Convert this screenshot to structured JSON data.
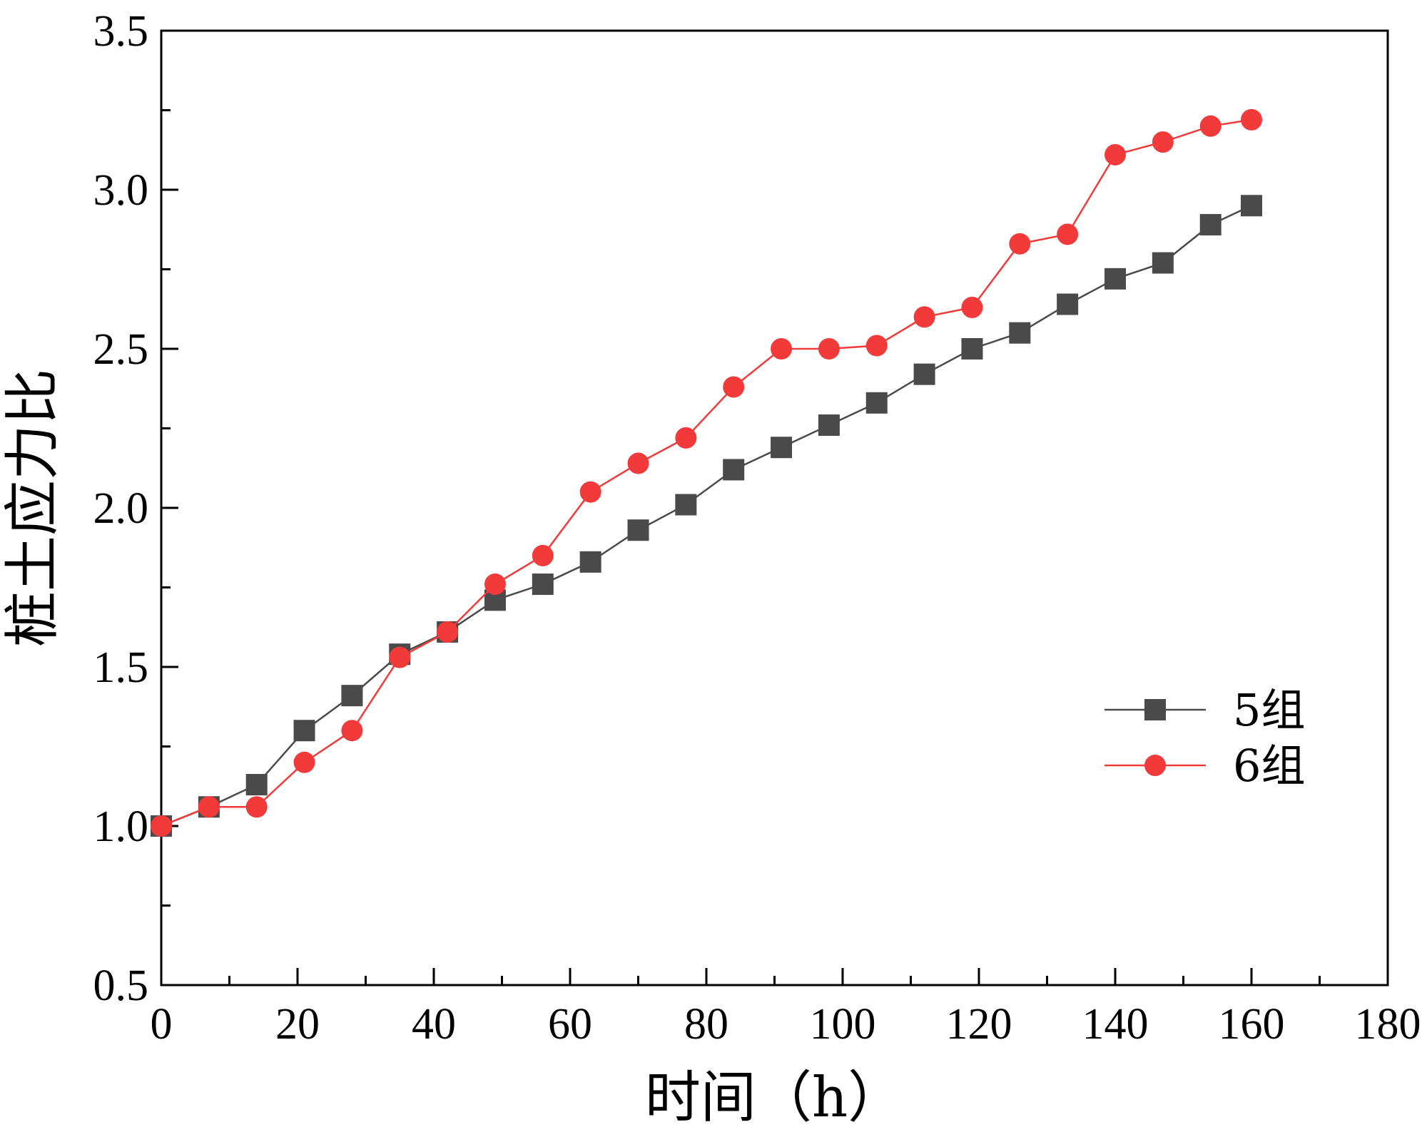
{
  "chart_data": {
    "type": "line",
    "title": "",
    "xlabel": "时间（h）",
    "ylabel": "桩土应力比",
    "xlim": [
      0,
      180
    ],
    "ylim": [
      0.5,
      3.5
    ],
    "x_ticks": [
      0,
      20,
      40,
      60,
      80,
      100,
      120,
      140,
      160,
      180
    ],
    "x_tick_labels": [
      "0",
      "20",
      "40",
      "60",
      "80",
      "100",
      "120",
      "140",
      "160",
      "180"
    ],
    "y_ticks": [
      0.5,
      1.0,
      1.5,
      2.0,
      2.5,
      3.0,
      3.5
    ],
    "y_tick_labels": [
      "0.5",
      "1.0",
      "1.5",
      "2.0",
      "2.5",
      "3.0",
      "3.5"
    ],
    "x_minor_ticks": [
      10,
      30,
      50,
      70,
      90,
      110,
      130,
      150,
      170
    ],
    "y_minor_ticks": [
      0.75,
      1.25,
      1.75,
      2.25,
      2.75,
      3.25
    ],
    "grid": false,
    "legend_position": "center-right",
    "x": [
      0,
      7,
      14,
      21,
      28,
      35,
      42,
      49,
      56,
      63,
      70,
      77,
      84,
      91,
      98,
      105,
      112,
      119,
      126,
      133,
      140,
      147,
      154,
      160
    ],
    "series": [
      {
        "name": "5组",
        "color": "#4a4a4a",
        "marker": "square",
        "values": [
          1.0,
          1.06,
          1.13,
          1.3,
          1.41,
          1.54,
          1.61,
          1.71,
          1.76,
          1.83,
          1.93,
          2.01,
          2.12,
          2.19,
          2.26,
          2.33,
          2.42,
          2.5,
          2.55,
          2.64,
          2.72,
          2.77,
          2.89,
          2.95
        ]
      },
      {
        "name": "6组",
        "color": "#f23a3a",
        "marker": "circle",
        "values": [
          1.0,
          1.06,
          1.06,
          1.2,
          1.3,
          1.53,
          1.61,
          1.76,
          1.85,
          2.05,
          2.14,
          2.22,
          2.38,
          2.5,
          2.5,
          2.51,
          2.6,
          2.63,
          2.83,
          2.86,
          3.11,
          3.15,
          3.2,
          3.22
        ]
      }
    ]
  }
}
